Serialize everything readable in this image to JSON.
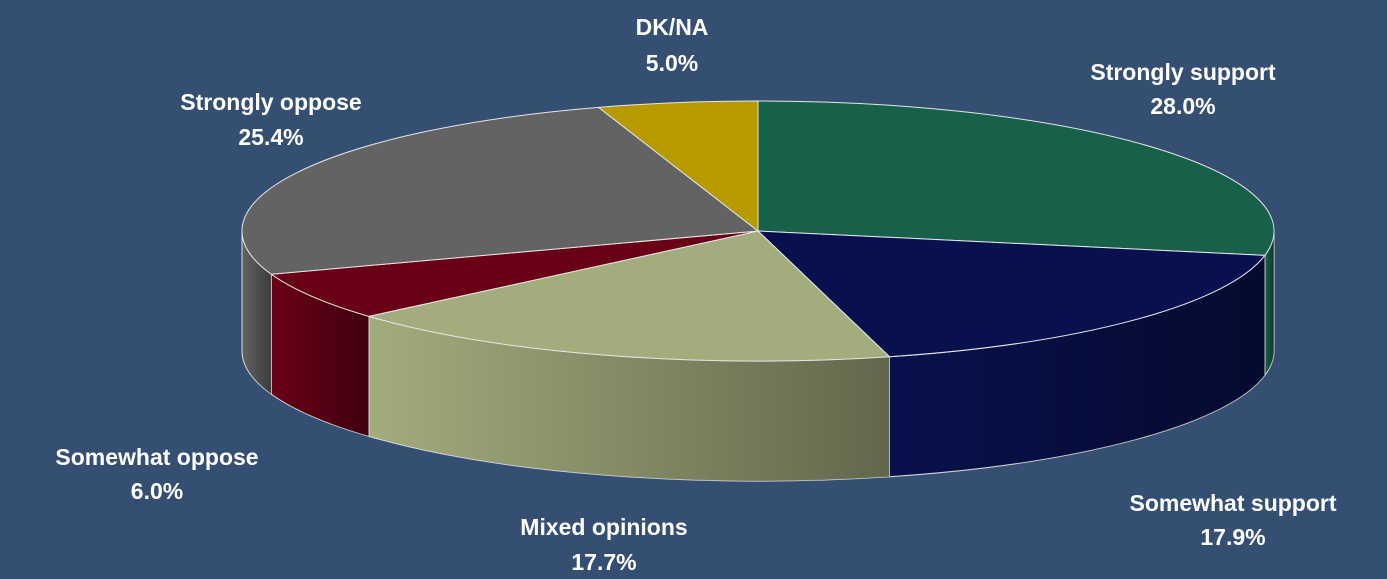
{
  "chart_data": {
    "type": "pie",
    "title": "",
    "slices": [
      {
        "label": "Strongly support",
        "value": 28.0,
        "display": "28.0%",
        "color": "#17614b"
      },
      {
        "label": "Somewhat support",
        "value": 17.9,
        "display": "17.9%",
        "color": "#08114d"
      },
      {
        "label": "Mixed opinions",
        "value": 17.7,
        "display": "17.7%",
        "color": "#a3ac7d"
      },
      {
        "label": "Somewhat oppose",
        "value": 6.0,
        "display": "6.0%",
        "color": "#6a0016"
      },
      {
        "label": "Strongly oppose",
        "value": 25.4,
        "display": "25.4%",
        "color": "#636363"
      },
      {
        "label": "DK/NA",
        "value": 5.0,
        "display": "5.0%",
        "color": "#b69a00"
      }
    ],
    "start_direction": "top",
    "rotation": "clockwise",
    "style": "3d",
    "background": "#354f73"
  }
}
